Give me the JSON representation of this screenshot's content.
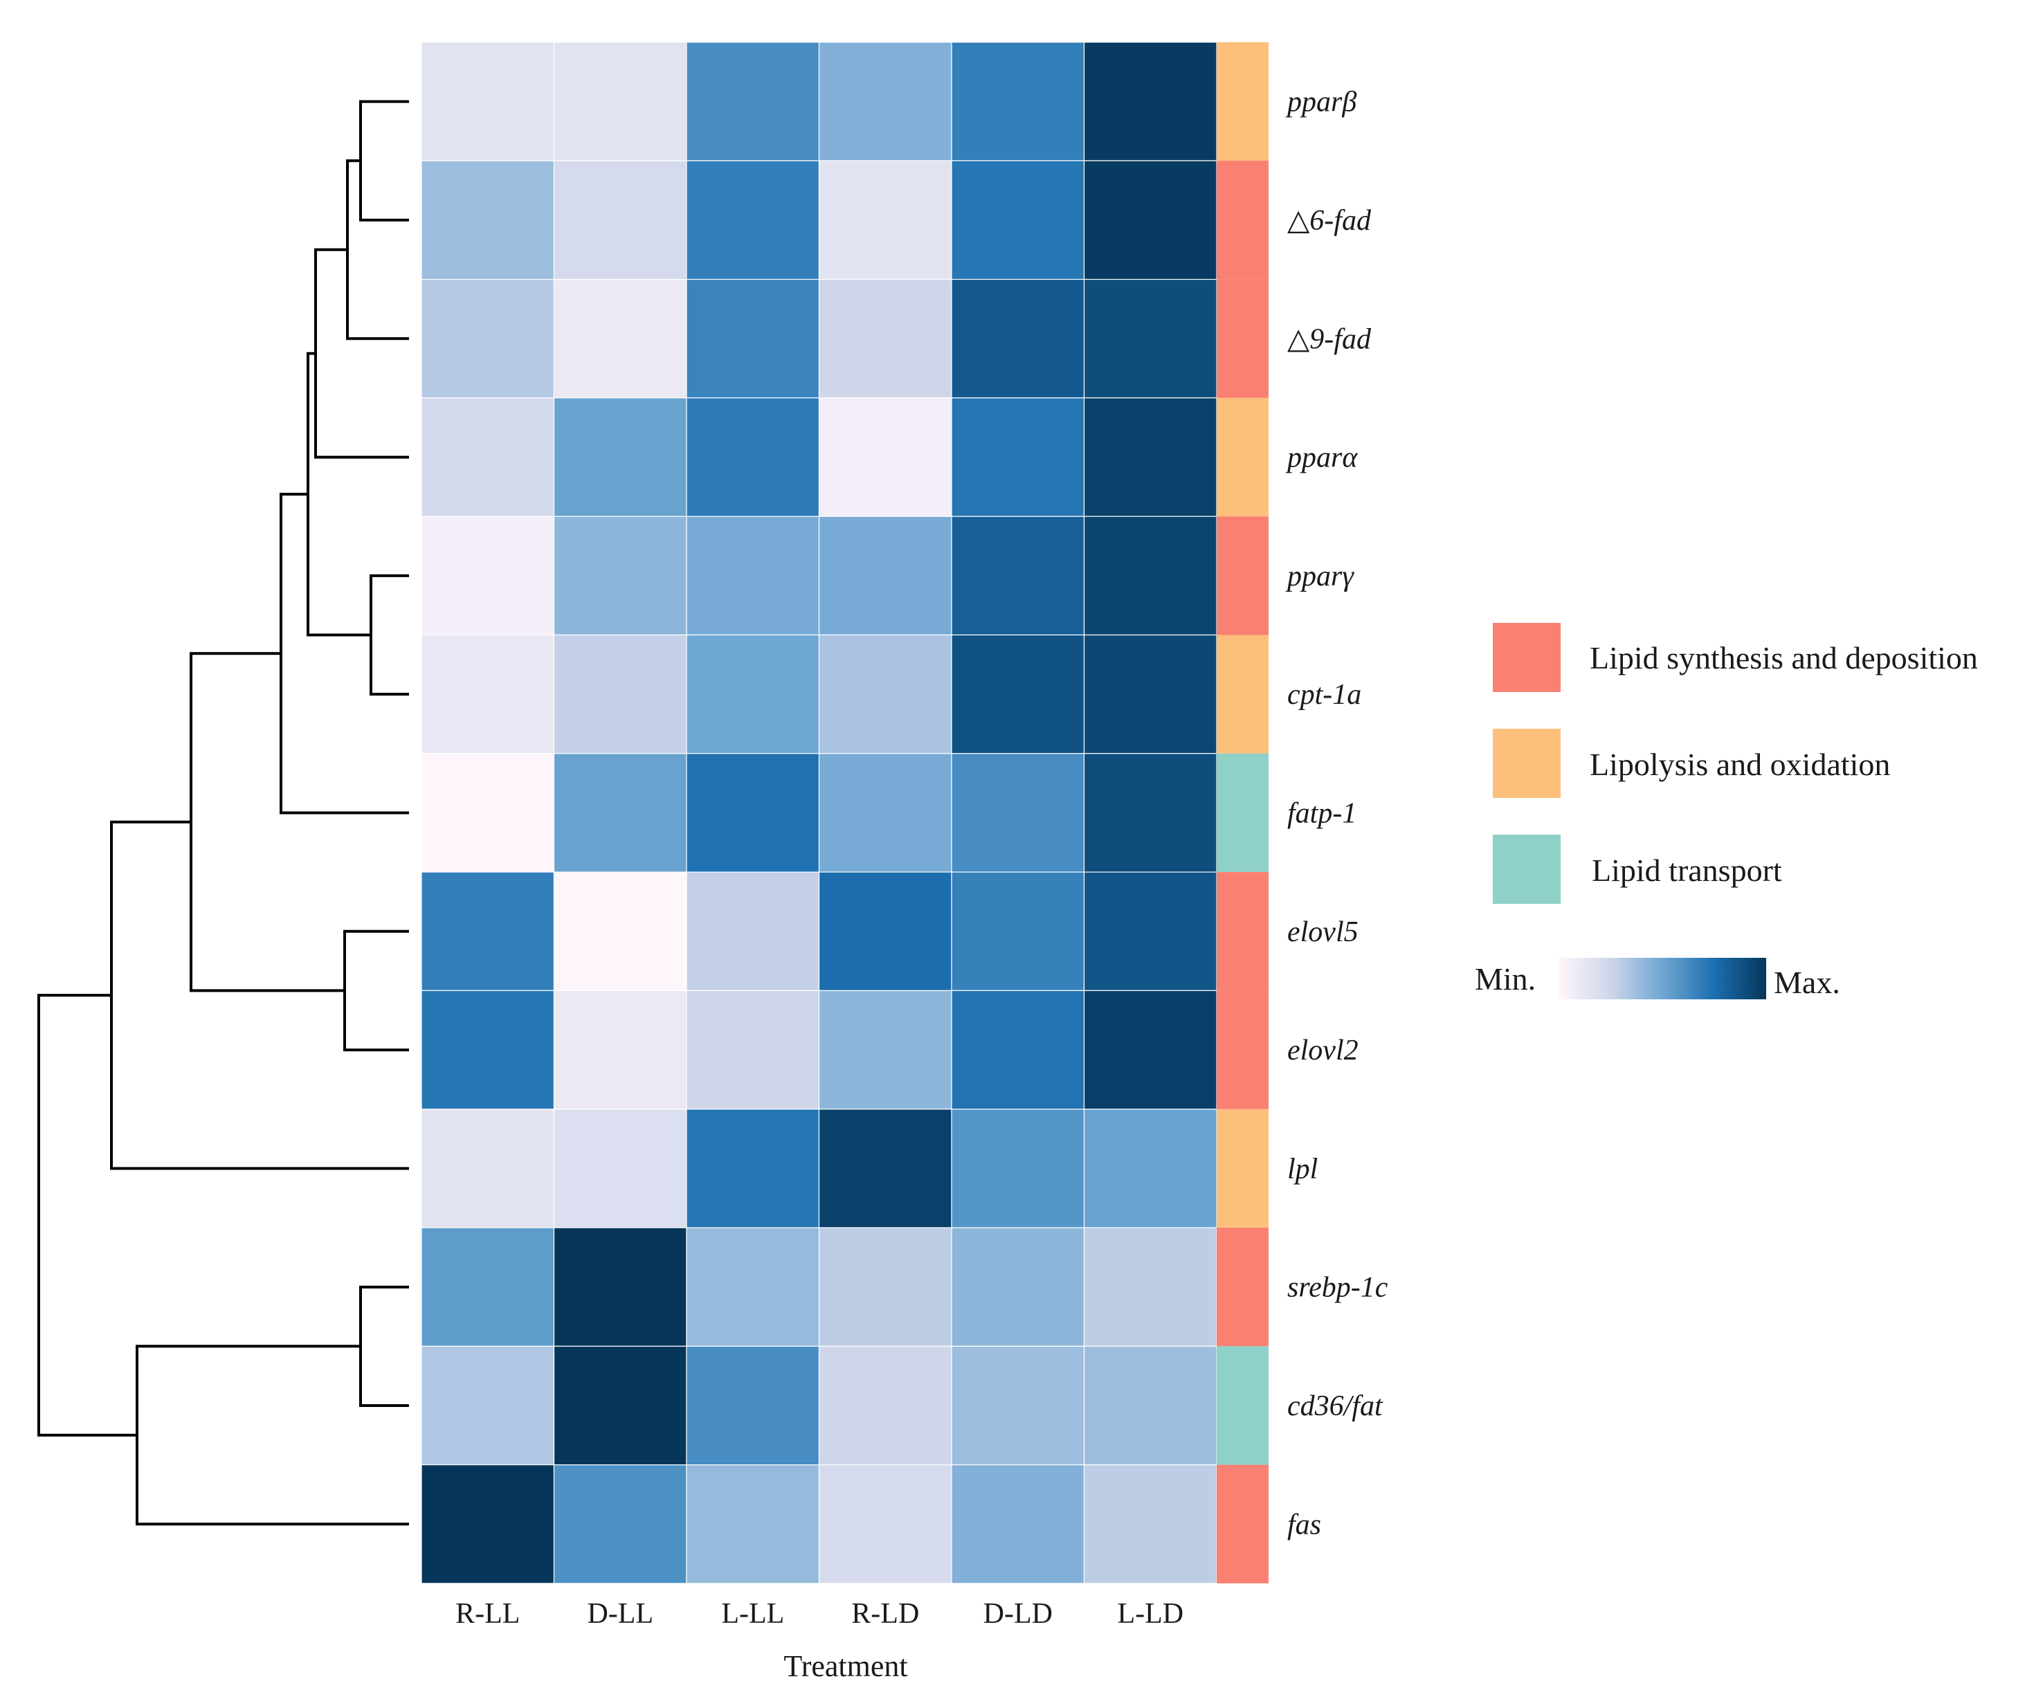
{
  "chart_data": {
    "type": "heatmap",
    "title": "",
    "xlabel": "Treatment",
    "ylabel": "",
    "columns": [
      "R-LL",
      "D-LL",
      "L-LL",
      "R-LD",
      "D-LD",
      "L-LD"
    ],
    "value_scale": "relative expression, 0 = Min., 1 = Max.",
    "rows": [
      {
        "gene": "pparβ",
        "category": "Lipolysis and oxidation",
        "values": [
          0.15,
          0.15,
          0.62,
          0.45,
          0.68,
          0.98
        ]
      },
      {
        "gene": "△6-fad",
        "category": "Lipid synthesis and deposition",
        "values": [
          0.38,
          0.22,
          0.68,
          0.15,
          0.72,
          0.98
        ]
      },
      {
        "gene": "△9-fad",
        "category": "Lipid synthesis and deposition",
        "values": [
          0.32,
          0.1,
          0.66,
          0.25,
          0.85,
          0.9
        ]
      },
      {
        "gene": "pparα",
        "category": "Lipolysis and oxidation",
        "values": [
          0.23,
          0.52,
          0.7,
          0.07,
          0.72,
          0.95
        ]
      },
      {
        "gene": "pparγ",
        "category": "Lipid synthesis and deposition",
        "values": [
          0.06,
          0.42,
          0.48,
          0.48,
          0.82,
          0.94
        ]
      },
      {
        "gene": "cpt-1a",
        "category": "Lipolysis and oxidation",
        "values": [
          0.12,
          0.28,
          0.5,
          0.35,
          0.88,
          0.92
        ]
      },
      {
        "gene": "fatp-1",
        "category": "Lipid transport",
        "values": [
          0.0,
          0.52,
          0.74,
          0.48,
          0.62,
          0.9
        ]
      },
      {
        "gene": "elovl5",
        "category": "Lipid synthesis and deposition",
        "values": [
          0.68,
          0.0,
          0.28,
          0.76,
          0.67,
          0.87
        ]
      },
      {
        "gene": "elovl2",
        "category": "Lipid synthesis and deposition",
        "values": [
          0.72,
          0.1,
          0.25,
          0.42,
          0.73,
          0.96
        ]
      },
      {
        "gene": "lpl",
        "category": "Lipolysis and oxidation",
        "values": [
          0.15,
          0.18,
          0.72,
          0.95,
          0.58,
          0.52
        ]
      },
      {
        "gene": "srebp-1c",
        "category": "Lipid synthesis and deposition",
        "values": [
          0.55,
          1.0,
          0.4,
          0.3,
          0.42,
          0.3
        ]
      },
      {
        "gene": "cd36/fat",
        "category": "Lipid transport",
        "values": [
          0.33,
          1.0,
          0.62,
          0.25,
          0.38,
          0.38
        ]
      },
      {
        "gene": "fas",
        "category": "Lipid synthesis and deposition",
        "values": [
          1.0,
          0.6,
          0.4,
          0.22,
          0.45,
          0.3
        ]
      }
    ],
    "legend": {
      "categories": [
        {
          "label": "Lipid synthesis and deposition",
          "color": "#fa8072"
        },
        {
          "label": "Lipolysis and oxidation",
          "color": "#fdbf7c"
        },
        {
          "label": "Lipid transport",
          "color": "#8fd0c7"
        }
      ],
      "colorbar": {
        "min_label": "Min.",
        "max_label": "Max."
      }
    },
    "colormap": [
      "#fff6fb",
      "#cfd6ea",
      "#6fa7d3",
      "#1c6fb0",
      "#05365a"
    ],
    "dendrogram_leaf_order": [
      "pparβ",
      "△6-fad",
      "△9-fad",
      "pparα",
      "pparγ",
      "cpt-1a",
      "fatp-1",
      "elovl5",
      "elovl2",
      "lpl",
      "srebp-1c",
      "cd36/fat",
      "fas"
    ]
  }
}
